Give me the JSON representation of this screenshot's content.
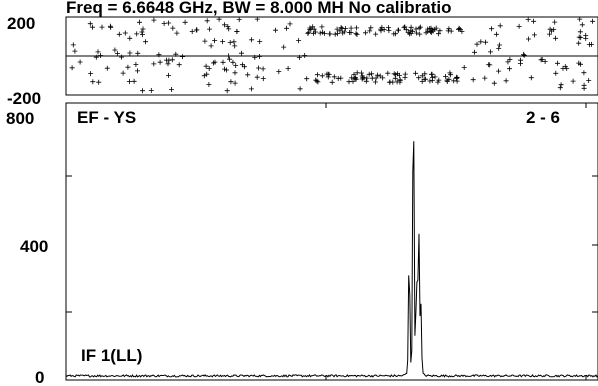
{
  "title": "Freq = 6.6648 GHz, BW = 8.000 MH   No calibratio",
  "chart_data": [
    {
      "type": "scatter",
      "panel": "phase",
      "ylim": [
        -200,
        200
      ],
      "yticks": [
        "200",
        "-200"
      ],
      "marker": "+",
      "bands": [
        {
          "x_range": [
            0,
            0.45
          ],
          "y_min": -180,
          "y_max": 190,
          "note": "scattered noise"
        },
        {
          "x_range": [
            0.45,
            0.75
          ],
          "y_center": 130,
          "y_spread": 20
        },
        {
          "x_range": [
            0.45,
            0.75
          ],
          "y_center": -110,
          "y_spread": 25
        },
        {
          "x_range": [
            0.75,
            1.0
          ],
          "y_min": -170,
          "y_max": 190,
          "note": "scattered noise"
        }
      ]
    },
    {
      "type": "line",
      "panel": "amplitude",
      "ylim": [
        0,
        800
      ],
      "yticks": [
        "800",
        "400",
        "0"
      ],
      "label_left": "EF - YS",
      "label_right": "2 - 6",
      "label_bottom": "IF 1(LL)",
      "series": [
        {
          "baseline": 12,
          "peaks": [
            {
              "x": 0.645,
              "y": 330
            },
            {
              "x": 0.653,
              "y": 805
            },
            {
              "x": 0.659,
              "y": 265
            },
            {
              "x": 0.663,
              "y": 415
            },
            {
              "x": 0.667,
              "y": 200
            }
          ]
        }
      ]
    }
  ]
}
